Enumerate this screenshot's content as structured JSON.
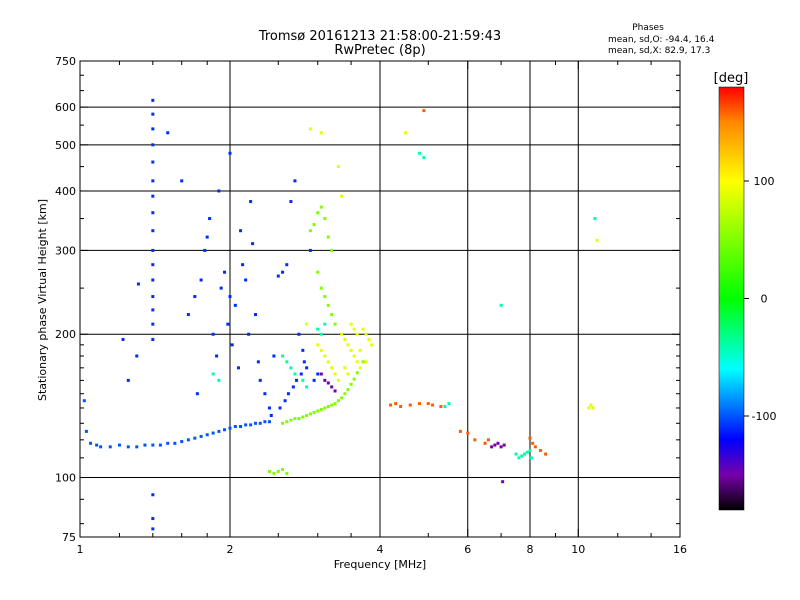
{
  "chart_data": {
    "type": "scatter",
    "title": "Tromsø 20161213 21:58:00-21:59:43",
    "subtitle": "RwPretec (8p)",
    "xlabel": "Frequency [MHz]",
    "ylabel": "Stationary phase Virtual Height [km]",
    "x_scale": "log",
    "y_scale": "log",
    "xlim": [
      1,
      16
    ],
    "ylim": [
      75,
      750
    ],
    "x_ticks": [
      1,
      2,
      4,
      6,
      8,
      10,
      16
    ],
    "x_tick_labels": [
      "1",
      "2",
      "4",
      "6",
      "8",
      "10",
      "16"
    ],
    "x_minor_ticks": [
      1.2,
      1.4,
      1.6,
      1.8,
      2.5,
      3,
      3.5,
      5,
      7,
      9,
      12,
      14
    ],
    "x_gridlines": [
      2,
      4,
      6,
      8,
      10
    ],
    "y_ticks": [
      75,
      100,
      200,
      300,
      400,
      500,
      600,
      750
    ],
    "y_tick_labels": [
      "75",
      "100",
      "200",
      "300",
      "400",
      "500",
      "600",
      "750"
    ],
    "y_minor_ticks": [
      80,
      90,
      110,
      120,
      130,
      140,
      150,
      160,
      170,
      180,
      190,
      250,
      350,
      450,
      550,
      650,
      700
    ],
    "y_gridlines": [
      100,
      200,
      300,
      400,
      500,
      600
    ],
    "grid": true,
    "phases_legend": {
      "title": "Phases",
      "line_o": "mean, sd,O: -94.4, 16.4",
      "line_x": "mean, sd,X:  82.9, 17.3"
    },
    "colorbar": {
      "label": "[deg]",
      "range": [
        -180,
        180
      ],
      "ticks": [
        100,
        0,
        -100
      ],
      "tick_labels": [
        "100",
        "0",
        "-100"
      ],
      "stops": [
        {
          "v": -180,
          "color": "#000000"
        },
        {
          "v": -150,
          "color": "#7700aa"
        },
        {
          "v": -120,
          "color": "#0000ff"
        },
        {
          "v": -60,
          "color": "#00ffff"
        },
        {
          "v": 0,
          "color": "#00ff00"
        },
        {
          "v": 100,
          "color": "#ffff00"
        },
        {
          "v": 150,
          "color": "#ff8800"
        },
        {
          "v": 180,
          "color": "#ff0000"
        }
      ]
    },
    "series": [
      {
        "phase": -100,
        "points": [
          [
            1.02,
            145
          ],
          [
            1.03,
            125
          ],
          [
            1.05,
            118
          ],
          [
            1.08,
            117
          ],
          [
            1.1,
            116
          ],
          [
            1.15,
            116
          ],
          [
            1.2,
            117
          ],
          [
            1.25,
            116
          ],
          [
            1.3,
            116
          ],
          [
            1.35,
            117
          ],
          [
            1.4,
            117
          ],
          [
            1.45,
            117
          ],
          [
            1.5,
            118
          ],
          [
            1.55,
            118
          ],
          [
            1.6,
            119
          ],
          [
            1.65,
            120
          ],
          [
            1.7,
            121
          ],
          [
            1.75,
            122
          ],
          [
            1.8,
            123
          ],
          [
            1.85,
            124
          ],
          [
            1.9,
            125
          ],
          [
            1.95,
            126
          ],
          [
            2.0,
            127
          ],
          [
            2.05,
            128
          ],
          [
            2.1,
            128
          ],
          [
            2.15,
            129
          ],
          [
            2.2,
            129
          ],
          [
            2.25,
            130
          ],
          [
            2.3,
            130
          ],
          [
            2.35,
            131
          ],
          [
            2.4,
            131
          ]
        ]
      },
      {
        "phase": -110,
        "points": [
          [
            1.4,
            620
          ],
          [
            1.4,
            580
          ],
          [
            1.4,
            540
          ],
          [
            1.4,
            500
          ],
          [
            1.4,
            460
          ],
          [
            1.4,
            420
          ],
          [
            1.4,
            390
          ],
          [
            1.4,
            360
          ],
          [
            1.4,
            330
          ],
          [
            1.4,
            300
          ],
          [
            1.4,
            280
          ],
          [
            1.4,
            260
          ],
          [
            1.4,
            240
          ],
          [
            1.4,
            225
          ],
          [
            1.4,
            210
          ],
          [
            1.4,
            195
          ],
          [
            1.4,
            92
          ],
          [
            1.4,
            82
          ],
          [
            1.4,
            78
          ],
          [
            1.31,
            255
          ],
          [
            1.3,
            180
          ],
          [
            1.25,
            160
          ],
          [
            1.22,
            195
          ],
          [
            1.5,
            530
          ],
          [
            1.6,
            420
          ],
          [
            1.65,
            220
          ],
          [
            1.7,
            240
          ],
          [
            1.72,
            150
          ],
          [
            1.75,
            260
          ],
          [
            1.78,
            300
          ],
          [
            1.8,
            320
          ],
          [
            1.82,
            350
          ],
          [
            1.85,
            200
          ],
          [
            1.88,
            180
          ],
          [
            1.9,
            400
          ],
          [
            1.92,
            250
          ],
          [
            1.95,
            270
          ],
          [
            1.98,
            210
          ],
          [
            2.0,
            480
          ],
          [
            2.0,
            240
          ],
          [
            2.02,
            190
          ],
          [
            2.05,
            230
          ],
          [
            2.08,
            170
          ],
          [
            2.1,
            330
          ],
          [
            2.12,
            280
          ],
          [
            2.15,
            260
          ],
          [
            2.18,
            200
          ],
          [
            2.2,
            380
          ],
          [
            2.22,
            310
          ],
          [
            2.25,
            220
          ],
          [
            2.28,
            175
          ],
          [
            2.3,
            160
          ],
          [
            2.35,
            150
          ],
          [
            2.4,
            140
          ],
          [
            2.42,
            135
          ],
          [
            2.45,
            180
          ],
          [
            2.5,
            265
          ],
          [
            2.55,
            270
          ],
          [
            2.6,
            280
          ],
          [
            2.65,
            380
          ],
          [
            2.7,
            420
          ],
          [
            2.75,
            200
          ],
          [
            2.8,
            185
          ],
          [
            2.85,
            170
          ],
          [
            2.9,
            300
          ],
          [
            2.95,
            160
          ],
          [
            3.0,
            165
          ],
          [
            2.52,
            140
          ],
          [
            2.58,
            145
          ],
          [
            2.62,
            150
          ],
          [
            2.68,
            155
          ],
          [
            2.72,
            160
          ],
          [
            2.78,
            165
          ],
          [
            2.82,
            175
          ]
        ]
      },
      {
        "phase": -40,
        "points": [
          [
            1.85,
            165
          ],
          [
            1.9,
            160
          ],
          [
            2.55,
            180
          ],
          [
            2.6,
            175
          ],
          [
            2.65,
            170
          ],
          [
            2.7,
            165
          ],
          [
            2.8,
            160
          ],
          [
            2.85,
            155
          ],
          [
            3.0,
            205
          ],
          [
            3.05,
            200
          ],
          [
            3.1,
            210
          ],
          [
            4.8,
            480
          ],
          [
            4.9,
            470
          ],
          [
            7.0,
            230
          ],
          [
            7.5,
            112
          ],
          [
            7.6,
            110
          ],
          [
            7.7,
            111
          ],
          [
            7.8,
            112
          ],
          [
            7.9,
            113
          ],
          [
            8.0,
            114
          ],
          [
            8.05,
            110
          ],
          [
            5.5,
            143
          ],
          [
            5.4,
            141
          ],
          [
            10.8,
            350
          ]
        ]
      },
      {
        "phase": 50,
        "points": [
          [
            2.55,
            130
          ],
          [
            2.6,
            131
          ],
          [
            2.65,
            132
          ],
          [
            2.7,
            133
          ],
          [
            2.75,
            133
          ],
          [
            2.8,
            134
          ],
          [
            2.85,
            135
          ],
          [
            2.9,
            136
          ],
          [
            2.95,
            137
          ],
          [
            3.0,
            138
          ],
          [
            3.05,
            139
          ],
          [
            3.1,
            140
          ],
          [
            3.15,
            141
          ],
          [
            3.2,
            142
          ],
          [
            3.25,
            143
          ],
          [
            3.3,
            145
          ],
          [
            3.35,
            147
          ],
          [
            3.4,
            150
          ],
          [
            3.45,
            153
          ],
          [
            3.5,
            157
          ],
          [
            3.55,
            161
          ],
          [
            3.6,
            166
          ],
          [
            3.7,
            175
          ],
          [
            2.9,
            330
          ],
          [
            2.95,
            340
          ],
          [
            3.0,
            360
          ],
          [
            3.05,
            370
          ],
          [
            3.1,
            350
          ],
          [
            3.15,
            320
          ],
          [
            3.2,
            300
          ],
          [
            3.0,
            270
          ],
          [
            3.05,
            250
          ],
          [
            3.1,
            240
          ],
          [
            3.15,
            230
          ],
          [
            3.2,
            220
          ],
          [
            3.25,
            210
          ],
          [
            2.4,
            103
          ],
          [
            2.45,
            102
          ],
          [
            2.5,
            103
          ],
          [
            2.6,
            102
          ],
          [
            2.55,
            104
          ]
        ]
      },
      {
        "phase": 90,
        "points": [
          [
            3.0,
            190
          ],
          [
            3.05,
            185
          ],
          [
            3.1,
            180
          ],
          [
            3.15,
            175
          ],
          [
            3.2,
            170
          ],
          [
            3.25,
            165
          ],
          [
            3.3,
            160
          ],
          [
            3.35,
            200
          ],
          [
            3.4,
            195
          ],
          [
            3.45,
            190
          ],
          [
            3.5,
            185
          ],
          [
            3.55,
            180
          ],
          [
            3.6,
            175
          ],
          [
            3.65,
            170
          ],
          [
            3.7,
            205
          ],
          [
            3.75,
            200
          ],
          [
            3.8,
            195
          ],
          [
            3.85,
            190
          ],
          [
            3.5,
            210
          ],
          [
            3.55,
            205
          ],
          [
            3.6,
            200
          ],
          [
            3.4,
            170
          ],
          [
            3.45,
            165
          ],
          [
            3.65,
            185
          ],
          [
            3.75,
            175
          ],
          [
            2.9,
            540
          ],
          [
            3.05,
            530
          ],
          [
            3.3,
            450
          ],
          [
            3.35,
            390
          ],
          [
            2.85,
            210
          ],
          [
            4.5,
            530
          ],
          [
            10.5,
            140
          ],
          [
            10.6,
            142
          ],
          [
            10.7,
            140
          ],
          [
            10.9,
            315
          ]
        ]
      },
      {
        "phase": 160,
        "points": [
          [
            4.2,
            142
          ],
          [
            4.3,
            143
          ],
          [
            4.4,
            141
          ],
          [
            4.6,
            142
          ],
          [
            4.8,
            143
          ],
          [
            5.0,
            143
          ],
          [
            5.1,
            142
          ],
          [
            5.3,
            141
          ],
          [
            4.9,
            590
          ],
          [
            5.8,
            125
          ],
          [
            6.0,
            124
          ],
          [
            6.2,
            120
          ],
          [
            6.5,
            118
          ],
          [
            6.6,
            120
          ],
          [
            8.0,
            121
          ],
          [
            8.1,
            118
          ],
          [
            8.2,
            116
          ],
          [
            8.4,
            114
          ],
          [
            8.6,
            112
          ]
        ]
      },
      {
        "phase": -150,
        "points": [
          [
            3.05,
            165
          ],
          [
            3.1,
            160
          ],
          [
            3.15,
            158
          ],
          [
            3.2,
            155
          ],
          [
            3.25,
            152
          ],
          [
            6.8,
            117
          ],
          [
            6.9,
            118
          ],
          [
            7.0,
            116
          ],
          [
            7.1,
            117
          ],
          [
            6.7,
            116
          ],
          [
            7.05,
            98
          ]
        ]
      }
    ]
  }
}
